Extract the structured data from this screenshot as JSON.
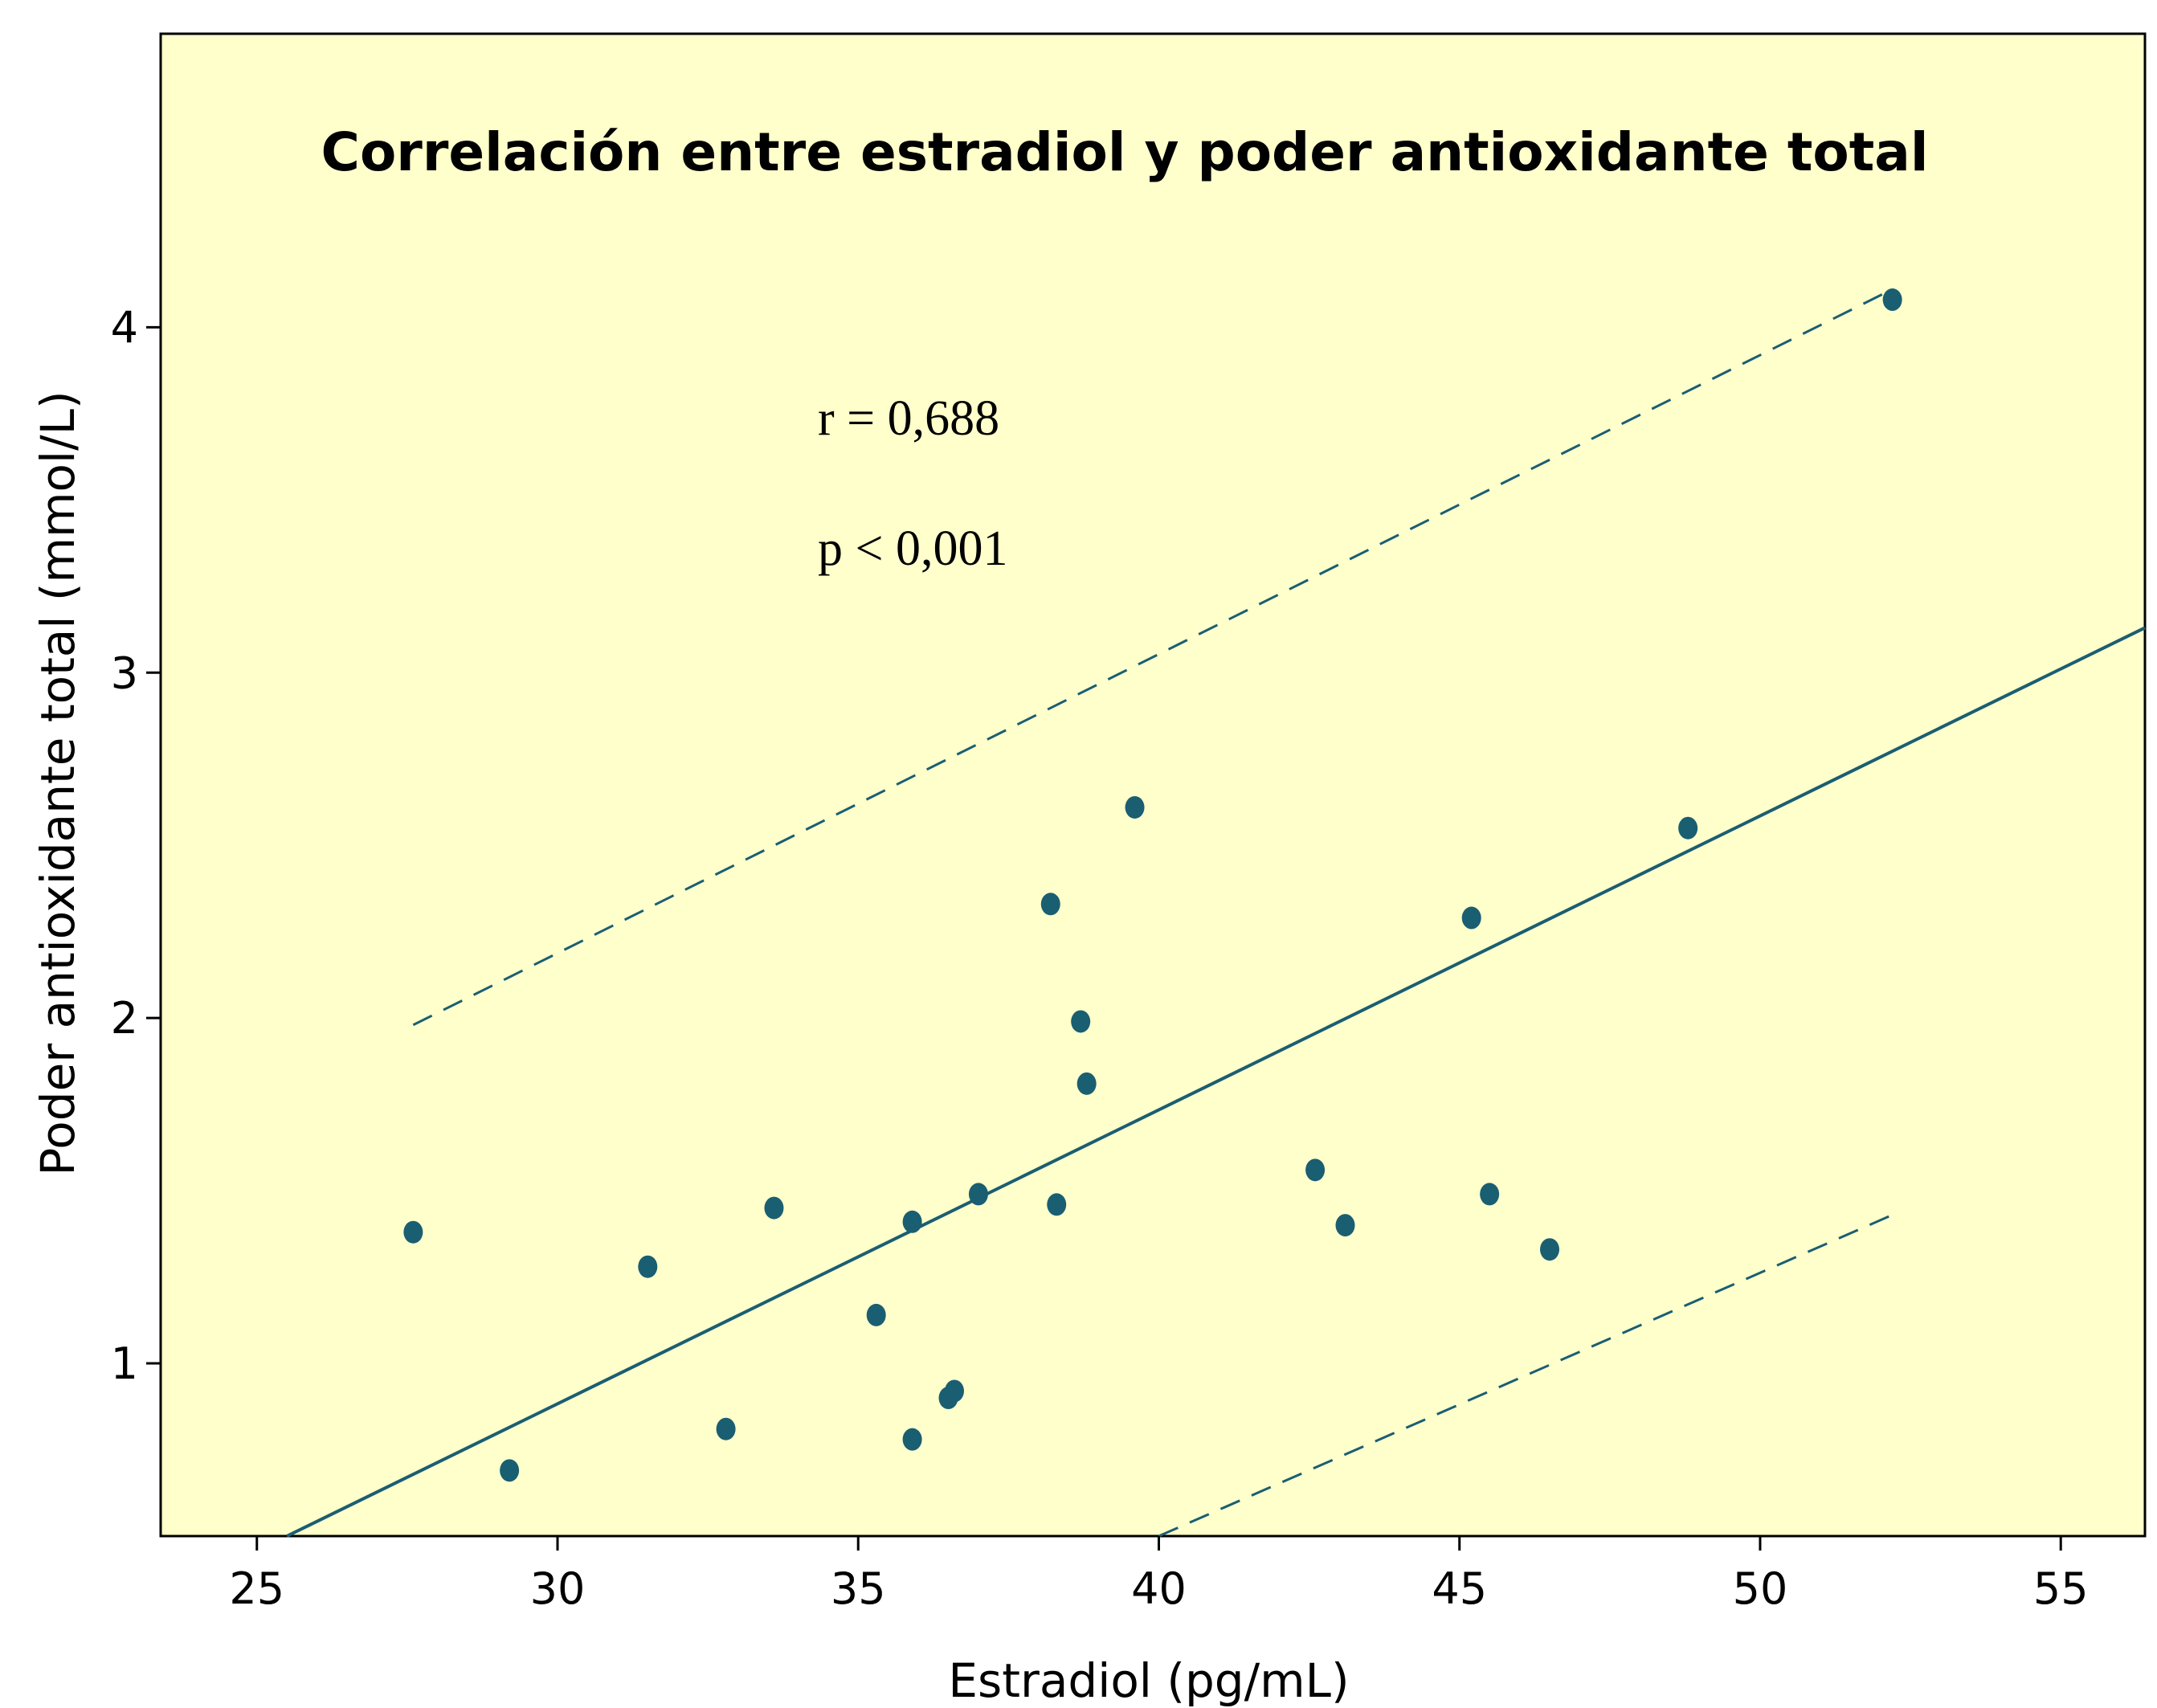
{
  "colors": {
    "plot_background": "#ffffcc",
    "marker": "#1a5e72",
    "line": "#1a5e72"
  },
  "chart_data": {
    "type": "scatter",
    "title": "Correlación entre estradiol y poder antioxidante total",
    "xlabel": "Estradiol (pg/mL)",
    "ylabel": "Poder antioxidante total (mmol/L)",
    "xlim": [
      23.4,
      56.4
    ],
    "ylim": [
      0.5,
      4.85
    ],
    "xticks": [
      25,
      30,
      35,
      40,
      45,
      50,
      55
    ],
    "yticks": [
      1,
      2,
      3,
      4
    ],
    "grid": false,
    "annotations": [
      "r = 0,688",
      "p < 0,001"
    ],
    "points": [
      {
        "x": 27.6,
        "y": 1.38
      },
      {
        "x": 29.2,
        "y": 0.69
      },
      {
        "x": 31.5,
        "y": 1.28
      },
      {
        "x": 32.8,
        "y": 0.81
      },
      {
        "x": 33.6,
        "y": 1.45
      },
      {
        "x": 35.3,
        "y": 1.14
      },
      {
        "x": 35.9,
        "y": 1.41
      },
      {
        "x": 35.9,
        "y": 0.78
      },
      {
        "x": 36.5,
        "y": 0.9
      },
      {
        "x": 36.6,
        "y": 0.92
      },
      {
        "x": 37.0,
        "y": 1.49
      },
      {
        "x": 38.2,
        "y": 2.33
      },
      {
        "x": 38.3,
        "y": 1.46
      },
      {
        "x": 38.7,
        "y": 1.99
      },
      {
        "x": 38.8,
        "y": 1.81
      },
      {
        "x": 39.6,
        "y": 2.61
      },
      {
        "x": 42.6,
        "y": 1.56
      },
      {
        "x": 43.1,
        "y": 1.4
      },
      {
        "x": 45.2,
        "y": 2.29
      },
      {
        "x": 45.5,
        "y": 1.49
      },
      {
        "x": 46.5,
        "y": 1.33
      },
      {
        "x": 48.8,
        "y": 2.55
      },
      {
        "x": 52.2,
        "y": 4.08
      }
    ],
    "fit_line": {
      "x": [
        25.5,
        56.4
      ],
      "y": [
        0.5,
        3.13
      ]
    },
    "upper_band": {
      "x": [
        27.6,
        52.2
      ],
      "y": [
        1.98,
        4.11
      ]
    },
    "lower_band": {
      "x": [
        40.0,
        52.2
      ],
      "y": [
        0.5,
        1.43
      ]
    }
  }
}
